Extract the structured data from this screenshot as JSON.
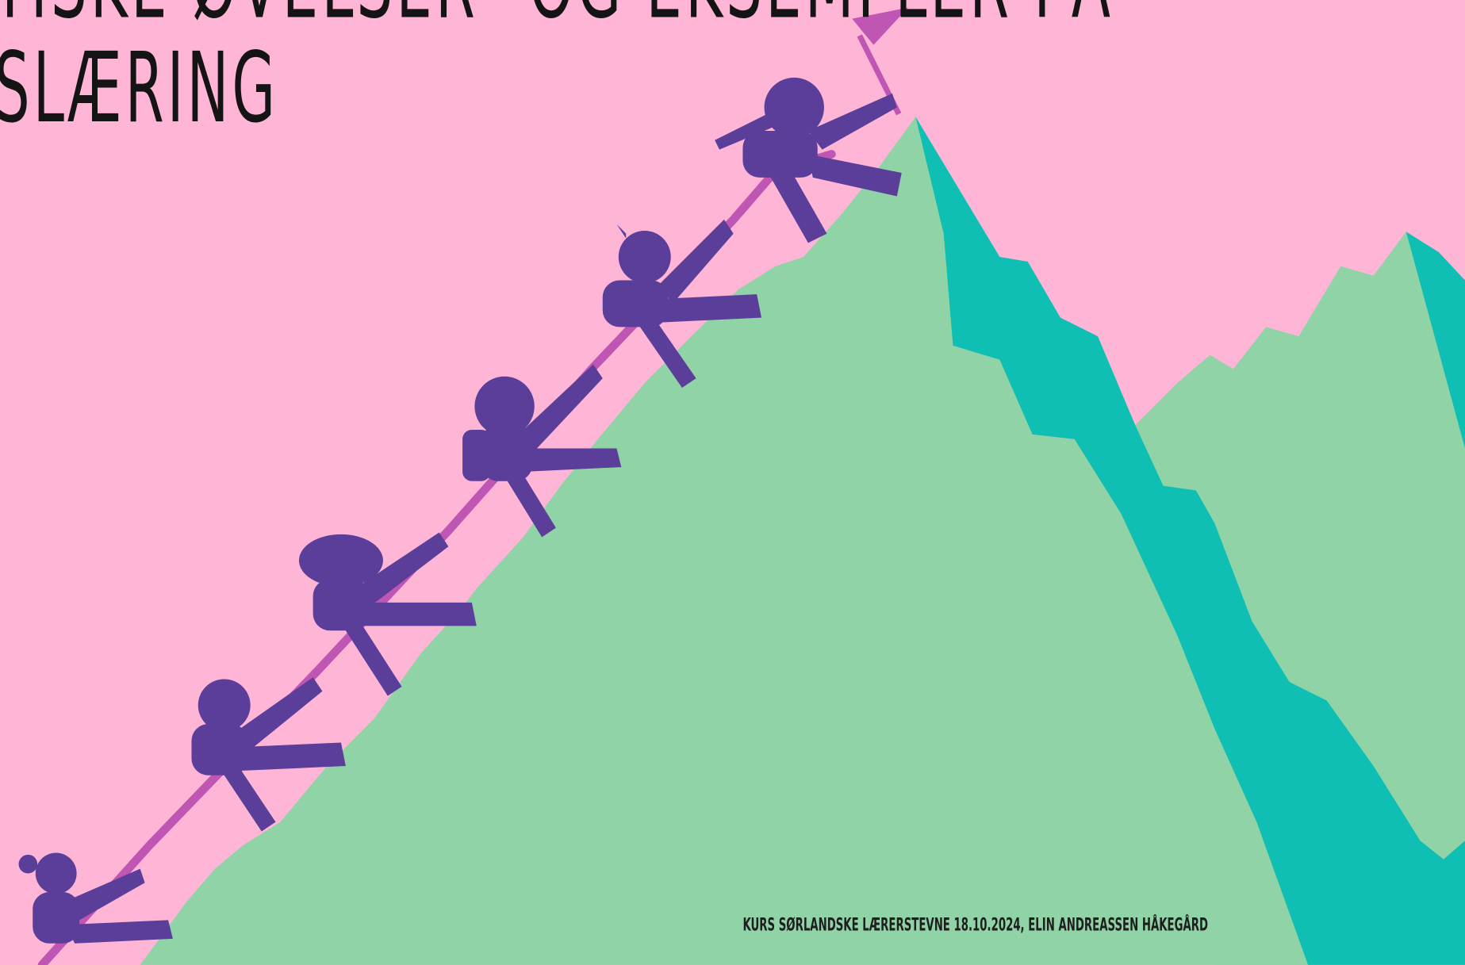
{
  "slide": {
    "title_lines": [
      "TISKE ØVELSER” OG EKSEMPLER PÅ",
      "SLÆRING"
    ],
    "footer": "KURS SØRLANDSKE LÆRERSTEVNE 18.10.2024, ELIN ANDREASSEN HÅKEGÅRD"
  }
}
